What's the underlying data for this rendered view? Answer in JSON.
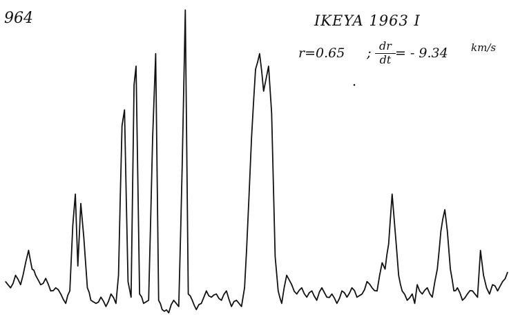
{
  "annotations": {
    "plate_number": "964",
    "comet": "IKEYA 1963 I",
    "r_text": "r=0.65",
    "separator": ";",
    "deriv_num": "dr",
    "deriv_den": "dt",
    "velocity_text": "= - 9.34",
    "unit_text": "km/s"
  },
  "colors": {
    "trace": "#111111",
    "background": "#ffffff"
  },
  "chart_data": {
    "type": "line",
    "title": "IKEYA 1963 I",
    "xlabel": "",
    "ylabel": "",
    "axes_shown": false,
    "grid": false,
    "xlim": [
      0,
      100
    ],
    "ylim": [
      0,
      100
    ],
    "series": [
      {
        "points": [
          [
            0,
            12
          ],
          [
            1,
            10
          ],
          [
            2,
            14
          ],
          [
            3,
            11
          ],
          [
            4,
            18
          ],
          [
            4.6,
            22
          ],
          [
            5.3,
            16
          ],
          [
            6,
            14
          ],
          [
            7,
            11
          ],
          [
            8,
            13
          ],
          [
            9,
            9
          ],
          [
            10,
            10
          ],
          [
            11,
            8
          ],
          [
            12,
            5
          ],
          [
            12.8,
            9
          ],
          [
            13.4,
            30
          ],
          [
            13.9,
            40
          ],
          [
            14.4,
            17
          ],
          [
            15,
            37
          ],
          [
            15.6,
            26
          ],
          [
            16.3,
            10
          ],
          [
            17,
            6
          ],
          [
            18,
            5
          ],
          [
            19,
            7
          ],
          [
            20,
            4
          ],
          [
            21,
            8
          ],
          [
            22,
            5
          ],
          [
            22.5,
            14
          ],
          [
            23.2,
            62
          ],
          [
            23.7,
            67
          ],
          [
            24.4,
            12
          ],
          [
            25,
            7
          ],
          [
            25.6,
            75
          ],
          [
            26,
            81
          ],
          [
            26.7,
            8
          ],
          [
            27.5,
            5
          ],
          [
            28.5,
            6
          ],
          [
            29.3,
            58
          ],
          [
            29.9,
            85
          ],
          [
            30.5,
            6
          ],
          [
            31.2,
            3
          ],
          [
            32.5,
            2
          ],
          [
            33.5,
            6
          ],
          [
            34.5,
            4
          ],
          [
            35.2,
            50
          ],
          [
            35.8,
            99
          ],
          [
            36.4,
            8
          ],
          [
            37.2,
            6
          ],
          [
            38,
            3
          ],
          [
            39,
            5
          ],
          [
            40,
            9
          ],
          [
            41,
            7
          ],
          [
            42,
            8
          ],
          [
            43,
            6
          ],
          [
            44,
            9
          ],
          [
            45,
            4
          ],
          [
            46,
            6
          ],
          [
            47,
            4
          ],
          [
            47.6,
            10
          ],
          [
            48,
            22
          ],
          [
            49,
            58
          ],
          [
            49.8,
            80
          ],
          [
            50.6,
            85
          ],
          [
            51.4,
            73
          ],
          [
            51.9,
            77
          ],
          [
            52.4,
            81
          ],
          [
            53,
            66
          ],
          [
            53.7,
            20
          ],
          [
            54.3,
            9
          ],
          [
            55,
            5
          ],
          [
            56,
            14
          ],
          [
            57,
            11
          ],
          [
            58,
            8
          ],
          [
            59,
            10
          ],
          [
            60,
            7
          ],
          [
            61,
            9
          ],
          [
            62,
            6
          ],
          [
            63,
            10
          ],
          [
            64,
            7
          ],
          [
            65,
            8
          ],
          [
            66,
            5
          ],
          [
            67,
            9
          ],
          [
            68,
            7
          ],
          [
            69,
            10
          ],
          [
            70,
            7
          ],
          [
            71,
            8
          ],
          [
            72,
            12
          ],
          [
            73,
            10
          ],
          [
            74,
            9
          ],
          [
            75,
            18
          ],
          [
            75.6,
            16
          ],
          [
            76.3,
            24
          ],
          [
            77,
            40
          ],
          [
            77.6,
            28
          ],
          [
            78.3,
            14
          ],
          [
            79,
            9
          ],
          [
            80,
            6
          ],
          [
            81,
            8
          ],
          [
            81.5,
            5
          ],
          [
            82,
            11
          ],
          [
            83,
            8
          ],
          [
            84,
            10
          ],
          [
            85,
            7
          ],
          [
            86,
            16
          ],
          [
            86.7,
            28
          ],
          [
            87.5,
            35
          ],
          [
            88,
            28
          ],
          [
            88.6,
            16
          ],
          [
            89.3,
            9
          ],
          [
            90,
            10
          ],
          [
            91,
            6
          ],
          [
            92,
            8
          ],
          [
            93,
            9
          ],
          [
            94,
            7
          ],
          [
            94.6,
            22
          ],
          [
            95.2,
            14
          ],
          [
            95.8,
            10
          ],
          [
            96.4,
            8
          ],
          [
            97,
            11
          ],
          [
            98,
            9
          ],
          [
            99,
            12
          ],
          [
            100,
            15
          ]
        ]
      }
    ]
  }
}
